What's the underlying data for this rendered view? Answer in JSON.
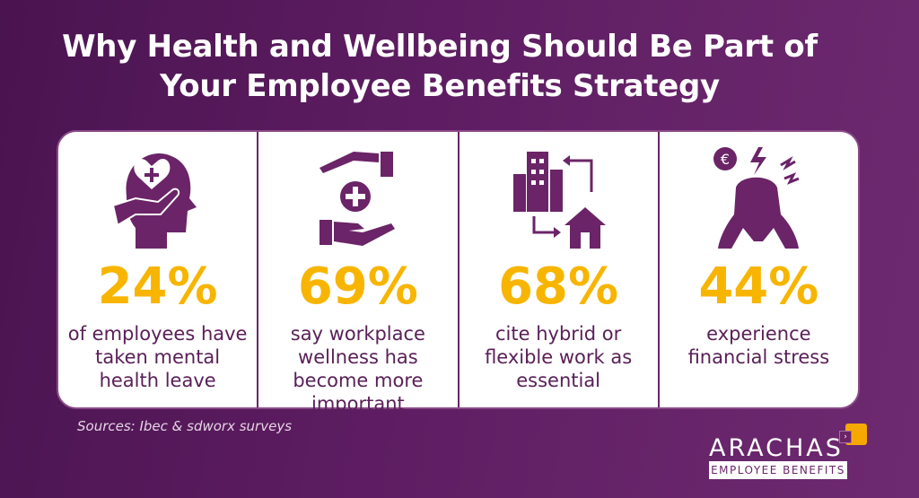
{
  "title": {
    "line1": "Why Health and Wellbeing Should Be Part of",
    "line2": "Your Employee Benefits Strategy"
  },
  "colors": {
    "purple": "#6b2468",
    "yellow": "#f7b500",
    "background": "#5e1d62"
  },
  "stats": [
    {
      "icon": "head-heart-hand-icon",
      "value": "24%",
      "text": "of employees have taken mental health leave"
    },
    {
      "icon": "hands-plus-icon",
      "value": "69%",
      "text": "say workplace wellness has become more important"
    },
    {
      "icon": "office-home-arrows-icon",
      "value": "68%",
      "text": "cite hybrid or flexible work as essential"
    },
    {
      "icon": "stressed-person-euro-icon",
      "value": "44%",
      "text": "experience financial stress"
    }
  ],
  "source": "Sources: Ibec & sdworx surveys",
  "logo": {
    "name": "ARACHAS",
    "tagline": "EMPLOYEE BENEFITS",
    "arrow": "›"
  }
}
